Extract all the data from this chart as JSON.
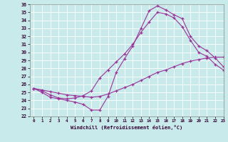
{
  "xlabel": "Windchill (Refroidissement éolien,°C)",
  "bg_color": "#c8eaea",
  "line_color": "#993399",
  "ylim": [
    22,
    36
  ],
  "xlim": [
    -0.5,
    23
  ],
  "yticks": [
    22,
    23,
    24,
    25,
    26,
    27,
    28,
    29,
    30,
    31,
    32,
    33,
    34,
    35,
    36
  ],
  "xticks": [
    0,
    1,
    2,
    3,
    4,
    5,
    6,
    7,
    8,
    9,
    10,
    11,
    12,
    13,
    14,
    15,
    16,
    17,
    18,
    19,
    20,
    21,
    22,
    23
  ],
  "line1_x": [
    0,
    1,
    2,
    3,
    4,
    5,
    6,
    7,
    8,
    9,
    10,
    11,
    12,
    13,
    14,
    15,
    16,
    17,
    18,
    19,
    20,
    21,
    22,
    23
  ],
  "line1_y": [
    25.5,
    25.0,
    24.4,
    24.2,
    24.0,
    23.8,
    23.5,
    22.8,
    22.8,
    24.5,
    27.5,
    29.2,
    30.8,
    33.0,
    35.2,
    35.8,
    35.3,
    34.7,
    34.2,
    32.0,
    30.8,
    30.2,
    29.3,
    28.2
  ],
  "line2_x": [
    0,
    1,
    2,
    3,
    4,
    5,
    6,
    7,
    8,
    9,
    10,
    11,
    12,
    13,
    14,
    15,
    16,
    17,
    18,
    19,
    20,
    21,
    22,
    23
  ],
  "line2_y": [
    25.5,
    25.2,
    24.7,
    24.3,
    24.2,
    24.3,
    24.6,
    25.2,
    26.8,
    27.8,
    28.8,
    29.8,
    31.0,
    32.5,
    33.8,
    35.0,
    34.8,
    34.3,
    33.2,
    31.5,
    30.0,
    29.5,
    28.5,
    27.8
  ],
  "line3_x": [
    0,
    1,
    2,
    3,
    4,
    5,
    6,
    7,
    8,
    9,
    10,
    11,
    12,
    13,
    14,
    15,
    16,
    17,
    18,
    19,
    20,
    21,
    22,
    23
  ],
  "line3_y": [
    25.5,
    25.3,
    25.1,
    24.9,
    24.7,
    24.6,
    24.5,
    24.4,
    24.5,
    24.8,
    25.2,
    25.6,
    26.0,
    26.5,
    27.0,
    27.5,
    27.8,
    28.2,
    28.6,
    28.9,
    29.1,
    29.3,
    29.4,
    29.4
  ]
}
